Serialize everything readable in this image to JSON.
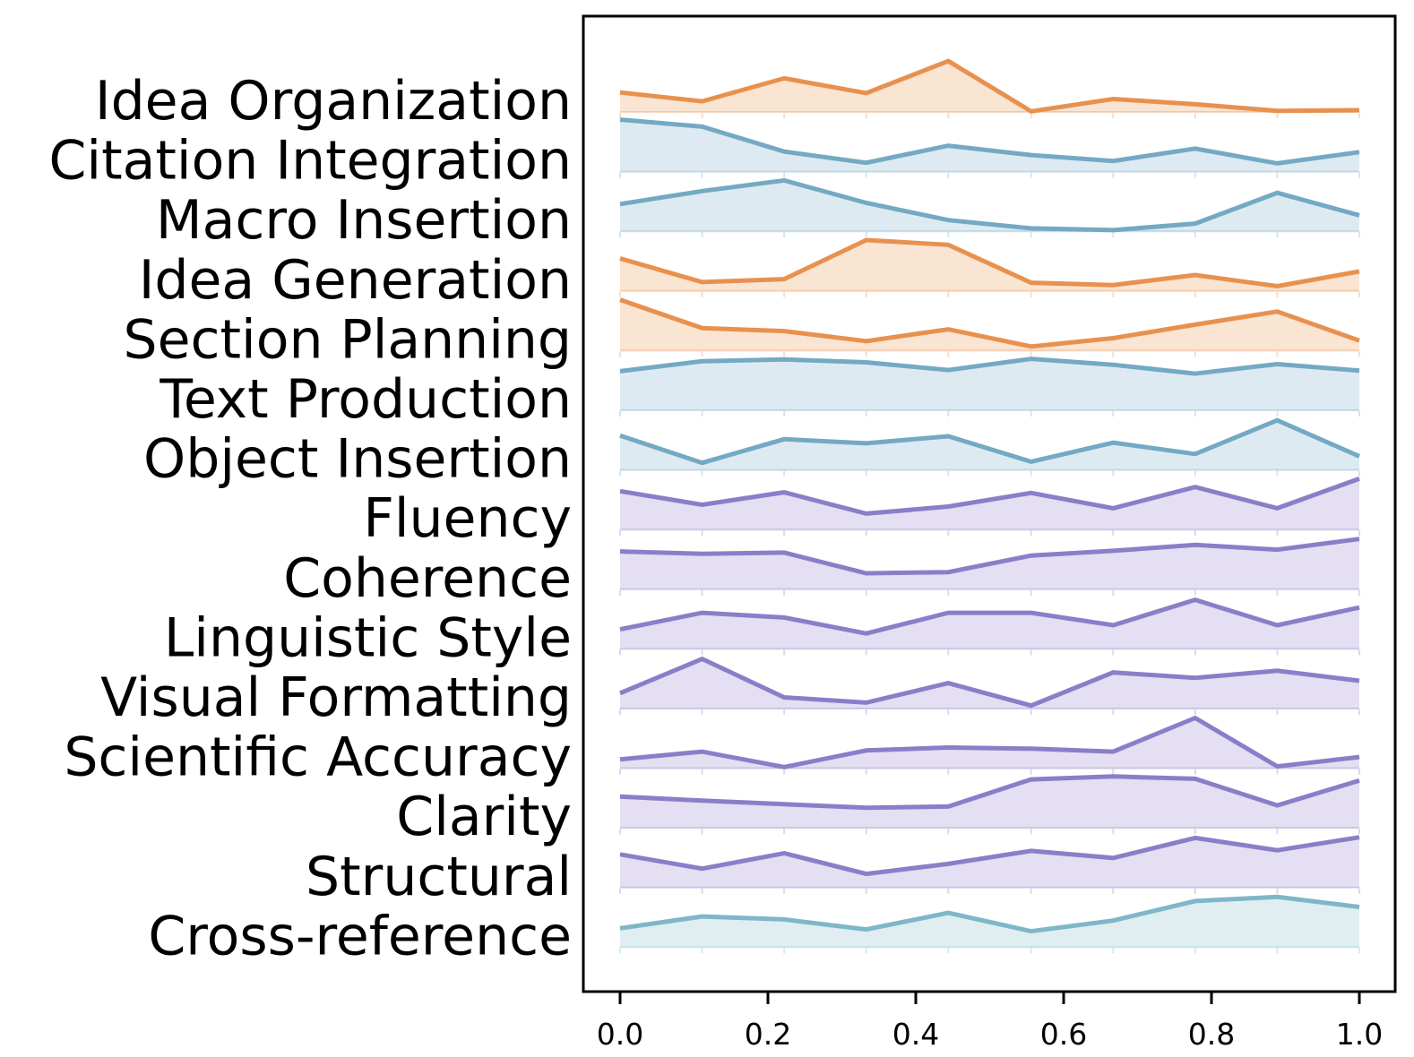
{
  "chart_data": {
    "type": "area",
    "subtype": "ridgeline",
    "title": "",
    "xlabel": "",
    "ylabel": "",
    "x_tick_labels": [
      "0.0",
      "0.2",
      "0.4",
      "0.6",
      "0.8",
      "1.0"
    ],
    "x_tick_values": [
      0.0,
      0.2,
      0.4,
      0.6,
      0.8,
      1.0
    ],
    "xlim": [
      0.0,
      1.0
    ],
    "x": [
      0.0,
      0.111,
      0.222,
      0.333,
      0.444,
      0.556,
      0.667,
      0.778,
      0.889,
      1.0
    ],
    "legend": "none",
    "grid": false,
    "palette": {
      "orange": {
        "line": "#E8914F",
        "fill": "#FAE4D2"
      },
      "blue": {
        "line": "#74A9C4",
        "fill": "#DEEAF1"
      },
      "purple": {
        "line": "#8B7EC8",
        "fill": "#E4DFF2"
      },
      "teal": {
        "line": "#7FB6C9",
        "fill": "#E0EEF1"
      }
    },
    "rows": [
      {
        "label": "Idea Organization",
        "color": "orange",
        "values": [
          0.33,
          0.18,
          0.57,
          0.32,
          0.86,
          0.01,
          0.22,
          0.13,
          0.02,
          0.03
        ]
      },
      {
        "label": "Citation Integration",
        "color": "blue",
        "values": [
          0.88,
          0.76,
          0.34,
          0.15,
          0.44,
          0.28,
          0.18,
          0.39,
          0.14,
          0.33
        ]
      },
      {
        "label": "Macro Insertion",
        "color": "blue",
        "values": [
          0.46,
          0.68,
          0.86,
          0.48,
          0.19,
          0.05,
          0.02,
          0.13,
          0.65,
          0.27
        ]
      },
      {
        "label": "Idea Generation",
        "color": "orange",
        "values": [
          0.55,
          0.15,
          0.2,
          0.86,
          0.78,
          0.14,
          0.1,
          0.27,
          0.08,
          0.33
        ]
      },
      {
        "label": "Section Planning",
        "color": "orange",
        "values": [
          0.86,
          0.38,
          0.33,
          0.16,
          0.36,
          0.07,
          0.21,
          0.44,
          0.66,
          0.17
        ]
      },
      {
        "label": "Text Production",
        "color": "blue",
        "values": [
          0.66,
          0.83,
          0.86,
          0.81,
          0.68,
          0.87,
          0.77,
          0.62,
          0.78,
          0.67
        ]
      },
      {
        "label": "Object Insertion",
        "color": "blue",
        "values": [
          0.58,
          0.12,
          0.52,
          0.45,
          0.57,
          0.14,
          0.46,
          0.27,
          0.84,
          0.23
        ]
      },
      {
        "label": "Fluency",
        "color": "purple",
        "values": [
          0.65,
          0.42,
          0.63,
          0.27,
          0.39,
          0.62,
          0.36,
          0.72,
          0.36,
          0.86
        ]
      },
      {
        "label": "Coherence",
        "color": "purple",
        "values": [
          0.64,
          0.6,
          0.62,
          0.27,
          0.29,
          0.57,
          0.65,
          0.75,
          0.67,
          0.85
        ]
      },
      {
        "label": "Linguistic Style",
        "color": "purple",
        "values": [
          0.33,
          0.61,
          0.53,
          0.26,
          0.61,
          0.61,
          0.4,
          0.83,
          0.4,
          0.7
        ]
      },
      {
        "label": "Visual Formatting",
        "color": "purple",
        "values": [
          0.26,
          0.84,
          0.19,
          0.1,
          0.43,
          0.05,
          0.61,
          0.52,
          0.64,
          0.47
        ]
      },
      {
        "label": "Scientific Accuracy",
        "color": "purple",
        "values": [
          0.15,
          0.28,
          0.02,
          0.3,
          0.35,
          0.33,
          0.28,
          0.85,
          0.03,
          0.19
        ]
      },
      {
        "label": "Clarity",
        "color": "purple",
        "values": [
          0.53,
          0.46,
          0.4,
          0.34,
          0.36,
          0.82,
          0.87,
          0.83,
          0.38,
          0.8
        ]
      },
      {
        "label": "Structural",
        "color": "purple",
        "values": [
          0.56,
          0.32,
          0.58,
          0.23,
          0.4,
          0.62,
          0.5,
          0.84,
          0.63,
          0.85
        ]
      },
      {
        "label": "Cross-reference",
        "color": "teal",
        "values": [
          0.32,
          0.52,
          0.47,
          0.3,
          0.58,
          0.27,
          0.45,
          0.78,
          0.85,
          0.68
        ]
      }
    ]
  }
}
